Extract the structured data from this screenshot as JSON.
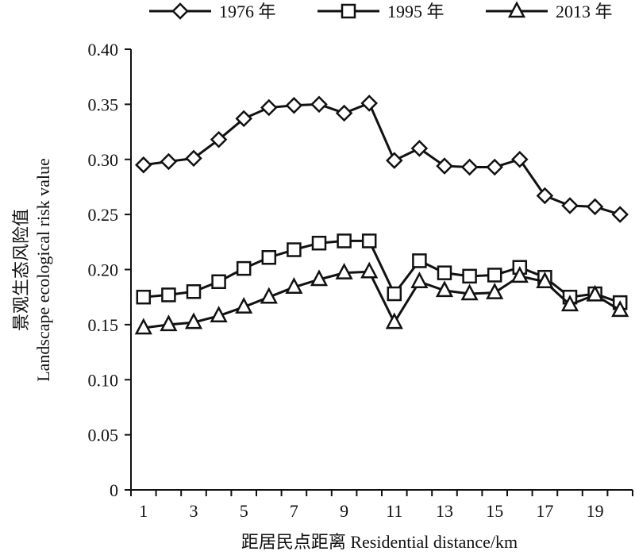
{
  "chart_data": {
    "type": "line",
    "xlabel": "距居民点距离 Residential distance/km",
    "ylabel_cn": "景观生态风险值",
    "ylabel_en": "Landscape ecological risk value",
    "x": [
      1,
      2,
      3,
      4,
      5,
      6,
      7,
      8,
      9,
      10,
      11,
      12,
      13,
      14,
      15,
      16,
      17,
      18,
      19,
      20
    ],
    "x_ticks": [
      1,
      3,
      5,
      7,
      9,
      11,
      13,
      15,
      17,
      19
    ],
    "ylim": [
      0,
      0.4
    ],
    "y_ticks": [
      "0",
      "0.05",
      "0.10",
      "0.15",
      "0.20",
      "0.25",
      "0.30",
      "0.35",
      "0.40"
    ],
    "grid": false,
    "legend_position": "top",
    "series": [
      {
        "name": "1976 年",
        "marker": "diamond",
        "values": [
          0.295,
          0.298,
          0.301,
          0.318,
          0.337,
          0.347,
          0.349,
          0.35,
          0.342,
          0.351,
          0.299,
          0.31,
          0.294,
          0.293,
          0.293,
          0.3,
          0.267,
          0.258,
          0.257,
          0.25
        ]
      },
      {
        "name": "1995 年",
        "marker": "square",
        "values": [
          0.175,
          0.177,
          0.18,
          0.189,
          0.201,
          0.211,
          0.218,
          0.224,
          0.226,
          0.226,
          0.178,
          0.208,
          0.197,
          0.194,
          0.195,
          0.202,
          0.193,
          0.175,
          0.178,
          0.17
        ]
      },
      {
        "name": "2013 年",
        "marker": "triangle",
        "values": [
          0.147,
          0.15,
          0.152,
          0.158,
          0.166,
          0.175,
          0.184,
          0.191,
          0.197,
          0.198,
          0.152,
          0.189,
          0.181,
          0.178,
          0.179,
          0.194,
          0.189,
          0.168,
          0.177,
          0.163
        ]
      }
    ]
  }
}
